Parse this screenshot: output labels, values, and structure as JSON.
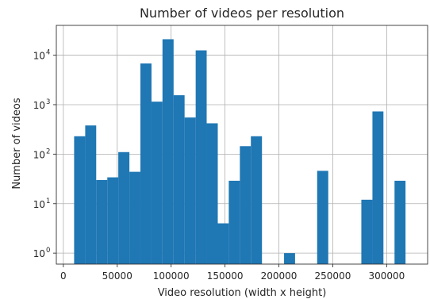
{
  "chart_data": {
    "type": "bar",
    "title": "Number of videos per resolution",
    "xlabel": "Video resolution (width x height)",
    "ylabel": "Number of videos",
    "x_ticks": [
      0,
      50000,
      100000,
      150000,
      200000,
      250000,
      300000
    ],
    "x_tick_labels": [
      "0",
      "50000",
      "100000",
      "150000",
      "200000",
      "250000",
      "300000"
    ],
    "y_scale": "log",
    "y_ticks": [
      1,
      10,
      100,
      1000,
      10000
    ],
    "y_tick_labels": [
      {
        "base": "10",
        "exp": "0"
      },
      {
        "base": "10",
        "exp": "1"
      },
      {
        "base": "10",
        "exp": "2"
      },
      {
        "base": "10",
        "exp": "3"
      },
      {
        "base": "10",
        "exp": "4"
      }
    ],
    "xlim": [
      -6500,
      338000
    ],
    "ylim": [
      0.6,
      40000
    ],
    "grid": true,
    "bar_color": "#1f77b4",
    "bins": [
      {
        "x0": 10000,
        "x1": 20300,
        "value": 230
      },
      {
        "x0": 20300,
        "x1": 30500,
        "value": 380
      },
      {
        "x0": 30500,
        "x1": 40800,
        "value": 30
      },
      {
        "x0": 40800,
        "x1": 51000,
        "value": 34
      },
      {
        "x0": 51000,
        "x1": 61300,
        "value": 110
      },
      {
        "x0": 61300,
        "x1": 71500,
        "value": 44
      },
      {
        "x0": 71500,
        "x1": 81800,
        "value": 6800
      },
      {
        "x0": 81800,
        "x1": 92000,
        "value": 1150
      },
      {
        "x0": 92000,
        "x1": 102300,
        "value": 21000
      },
      {
        "x0": 102300,
        "x1": 112500,
        "value": 1550
      },
      {
        "x0": 112500,
        "x1": 122800,
        "value": 550
      },
      {
        "x0": 122800,
        "x1": 133000,
        "value": 12500
      },
      {
        "x0": 133000,
        "x1": 143300,
        "value": 420
      },
      {
        "x0": 143300,
        "x1": 153500,
        "value": 4
      },
      {
        "x0": 153500,
        "x1": 163800,
        "value": 29
      },
      {
        "x0": 163800,
        "x1": 174000,
        "value": 145
      },
      {
        "x0": 174000,
        "x1": 184300,
        "value": 230
      },
      {
        "x0": 184300,
        "x1": 194500,
        "value": 0
      },
      {
        "x0": 194500,
        "x1": 204800,
        "value": 0
      },
      {
        "x0": 204800,
        "x1": 215000,
        "value": 1
      },
      {
        "x0": 215000,
        "x1": 225300,
        "value": 0
      },
      {
        "x0": 225300,
        "x1": 235500,
        "value": 0
      },
      {
        "x0": 235500,
        "x1": 245800,
        "value": 46
      },
      {
        "x0": 245800,
        "x1": 256000,
        "value": 0
      },
      {
        "x0": 256000,
        "x1": 266300,
        "value": 0
      },
      {
        "x0": 266300,
        "x1": 276500,
        "value": 0
      },
      {
        "x0": 276500,
        "x1": 286800,
        "value": 12
      },
      {
        "x0": 286800,
        "x1": 297000,
        "value": 730
      },
      {
        "x0": 297000,
        "x1": 307300,
        "value": 0
      },
      {
        "x0": 307300,
        "x1": 317500,
        "value": 29
      }
    ]
  }
}
